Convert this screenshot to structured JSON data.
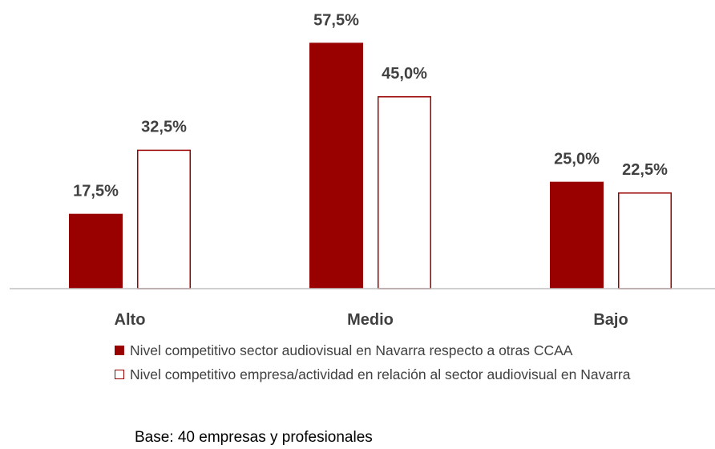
{
  "chart_data": {
    "type": "bar",
    "categories": [
      "Alto",
      "Medio",
      "Bajo"
    ],
    "series": [
      {
        "name": "Nivel competitivo  sector audiovisual en Navarra respecto a otras CCAA",
        "color": "#990000",
        "filled": true,
        "values": [
          17.5,
          57.5,
          25.0
        ],
        "value_labels": [
          "17,5%",
          "57,5%",
          "25,0%"
        ]
      },
      {
        "name": "Nivel competitivo empresa/actividad en relación al sector audiovisual en Navarra",
        "color": "#990000",
        "filled": false,
        "values": [
          32.5,
          45.0,
          22.5
        ],
        "value_labels": [
          "32,5%",
          "45,0%",
          "22,5%"
        ]
      }
    ],
    "ylim": [
      0,
      67.5
    ],
    "note": "Base: 40 empresas y profesionales"
  }
}
